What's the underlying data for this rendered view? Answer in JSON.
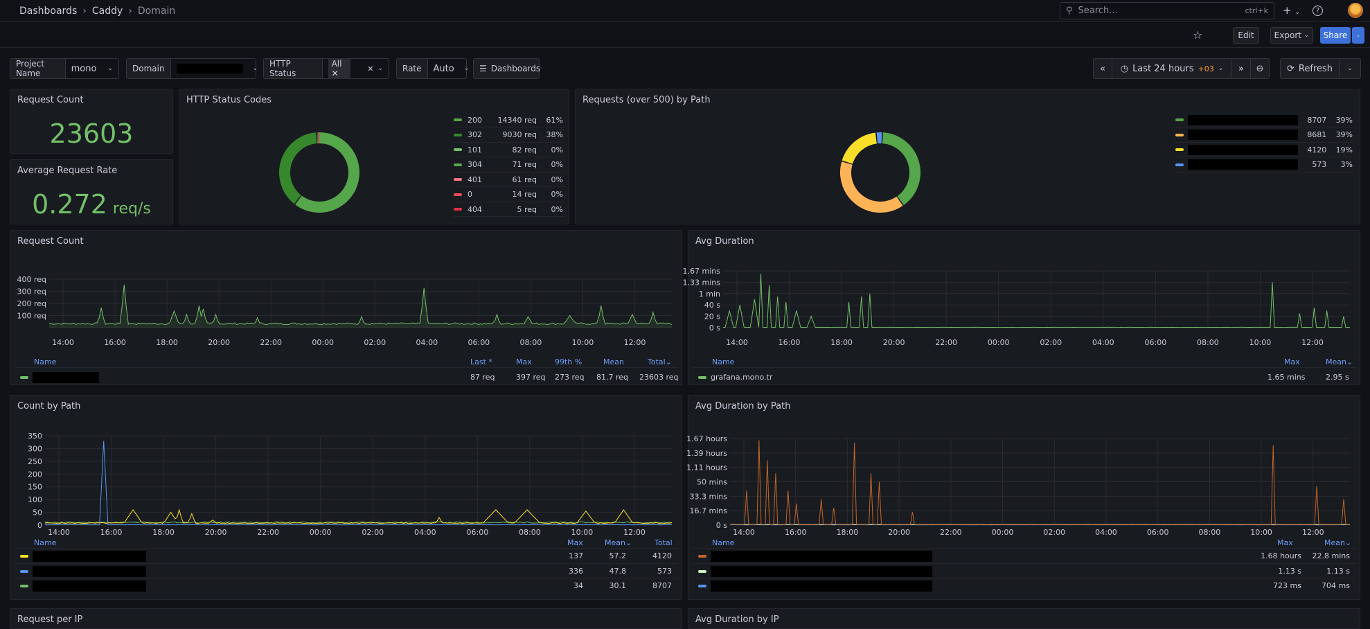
{
  "breadcrumb": [
    "Dashboards",
    "Caddy",
    "Domain"
  ],
  "search": {
    "placeholder": "Search...",
    "shortcut": "ctrl+k"
  },
  "toolbar": {
    "edit": "Edit",
    "export": "Export",
    "share": "Share"
  },
  "variables": {
    "project_name": {
      "label": "Project Name",
      "value": "mono"
    },
    "domain": {
      "label": "Domain"
    },
    "http_status": {
      "label": "HTTP Status",
      "value": "All"
    },
    "rate": {
      "label": "Rate",
      "value": "Auto"
    },
    "dashboards": "Dashboards"
  },
  "time": {
    "range": "Last 24 hours",
    "tz": "+03",
    "refresh": "Refresh"
  },
  "colors": {
    "green": "#73bf69",
    "yellow": "#fade2a",
    "orange": "#ff9830",
    "blue": "#5794f2",
    "red": "#f2495c"
  },
  "request_count_stat": {
    "title": "Request Count",
    "value": "23603"
  },
  "avg_rate_stat": {
    "title": "Average Request Rate",
    "value": "0.272",
    "unit": "req/s"
  },
  "http_status_codes": {
    "title": "HTTP Status Codes",
    "chart_data": {
      "type": "pie",
      "slices": [
        {
          "code": "200",
          "req": "14340 req",
          "pct": "61%",
          "value": 14340,
          "color": "#56a64b"
        },
        {
          "code": "302",
          "req": "9030 req",
          "pct": "38%",
          "value": 9030,
          "color": "#37872d"
        },
        {
          "code": "101",
          "req": "82 req",
          "pct": "0%",
          "value": 82,
          "color": "#73bf69"
        },
        {
          "code": "304",
          "req": "71 req",
          "pct": "0%",
          "value": 71,
          "color": "#5aa64b"
        },
        {
          "code": "401",
          "req": "61 req",
          "pct": "0%",
          "value": 61,
          "color": "#ff7383"
        },
        {
          "code": "0",
          "req": "14 req",
          "pct": "0%",
          "value": 14,
          "color": "#f2495c"
        },
        {
          "code": "404",
          "req": "5 req",
          "pct": "0%",
          "value": 5,
          "color": "#e02f44"
        }
      ]
    }
  },
  "requests_by_path": {
    "title": "Requests (over 500) by Path",
    "chart_data": {
      "type": "pie",
      "slices": [
        {
          "req": "8707",
          "pct": "39%",
          "value": 8707,
          "color": "#56a64b"
        },
        {
          "req": "8681",
          "pct": "39%",
          "value": 8681,
          "color": "#ffb357"
        },
        {
          "req": "4120",
          "pct": "19%",
          "value": 4120,
          "color": "#fade2a"
        },
        {
          "req": "573",
          "pct": "3%",
          "value": 573,
          "color": "#5794f2"
        }
      ]
    }
  },
  "x_ticks": [
    "14:00",
    "16:00",
    "18:00",
    "20:00",
    "22:00",
    "00:00",
    "02:00",
    "04:00",
    "06:00",
    "08:00",
    "10:00",
    "12:00"
  ],
  "request_count_ts": {
    "title": "Request Count",
    "y_ticks": [
      "400 req",
      "300 req",
      "200 req",
      "100 req"
    ],
    "legend_headers": {
      "name": "Name",
      "last": "Last *",
      "max": "Max",
      "p99": "99th %",
      "mean": "Mean",
      "total": "Total"
    },
    "row": {
      "last": "87 req",
      "max": "397 req",
      "p99": "273 req",
      "mean": "81.7 req",
      "total": "23603 req"
    }
  },
  "avg_duration_ts": {
    "title": "Avg Duration",
    "y_ticks": [
      "1.67 mins",
      "1.33 mins",
      "1 min",
      "40 s",
      "20 s",
      "0 s"
    ],
    "legend_headers": {
      "name": "Name",
      "max": "Max",
      "mean": "Mean"
    },
    "row": {
      "name": "grafana.mono.tr",
      "max": "1.65 mins",
      "mean": "2.95 s"
    }
  },
  "count_by_path": {
    "title": "Count by Path",
    "y_ticks": [
      "350",
      "300",
      "250",
      "200",
      "150",
      "100",
      "50",
      "0"
    ],
    "legend_headers": {
      "name": "Name",
      "max": "Max",
      "mean": "Mean",
      "total": "Total"
    },
    "rows": [
      {
        "max": "137",
        "mean": "57.2",
        "total": "4120",
        "color": "#fade2a"
      },
      {
        "max": "336",
        "mean": "47.8",
        "total": "573",
        "color": "#5794f2"
      },
      {
        "max": "34",
        "mean": "30.1",
        "total": "8707",
        "color": "#73bf69"
      }
    ]
  },
  "avg_duration_by_path": {
    "title": "Avg Duration by Path",
    "y_ticks": [
      "1.67 hours",
      "1.39 hours",
      "1.11 hours",
      "50 mins",
      "33.3 mins",
      "16.7 mins",
      "0 s"
    ],
    "legend_headers": {
      "name": "Name",
      "max": "Max",
      "mean": "Mean"
    },
    "rows": [
      {
        "max": "1.68 hours",
        "mean": "22.8 mins",
        "color": "#c4652a"
      },
      {
        "max": "1.13 s",
        "mean": "1.13 s",
        "color": "#c8f2c2"
      },
      {
        "max": "723 ms",
        "mean": "704 ms",
        "color": "#5794f2"
      }
    ]
  },
  "bottom_titles": {
    "left": "Request per IP",
    "right": "Avg Duration by IP"
  }
}
